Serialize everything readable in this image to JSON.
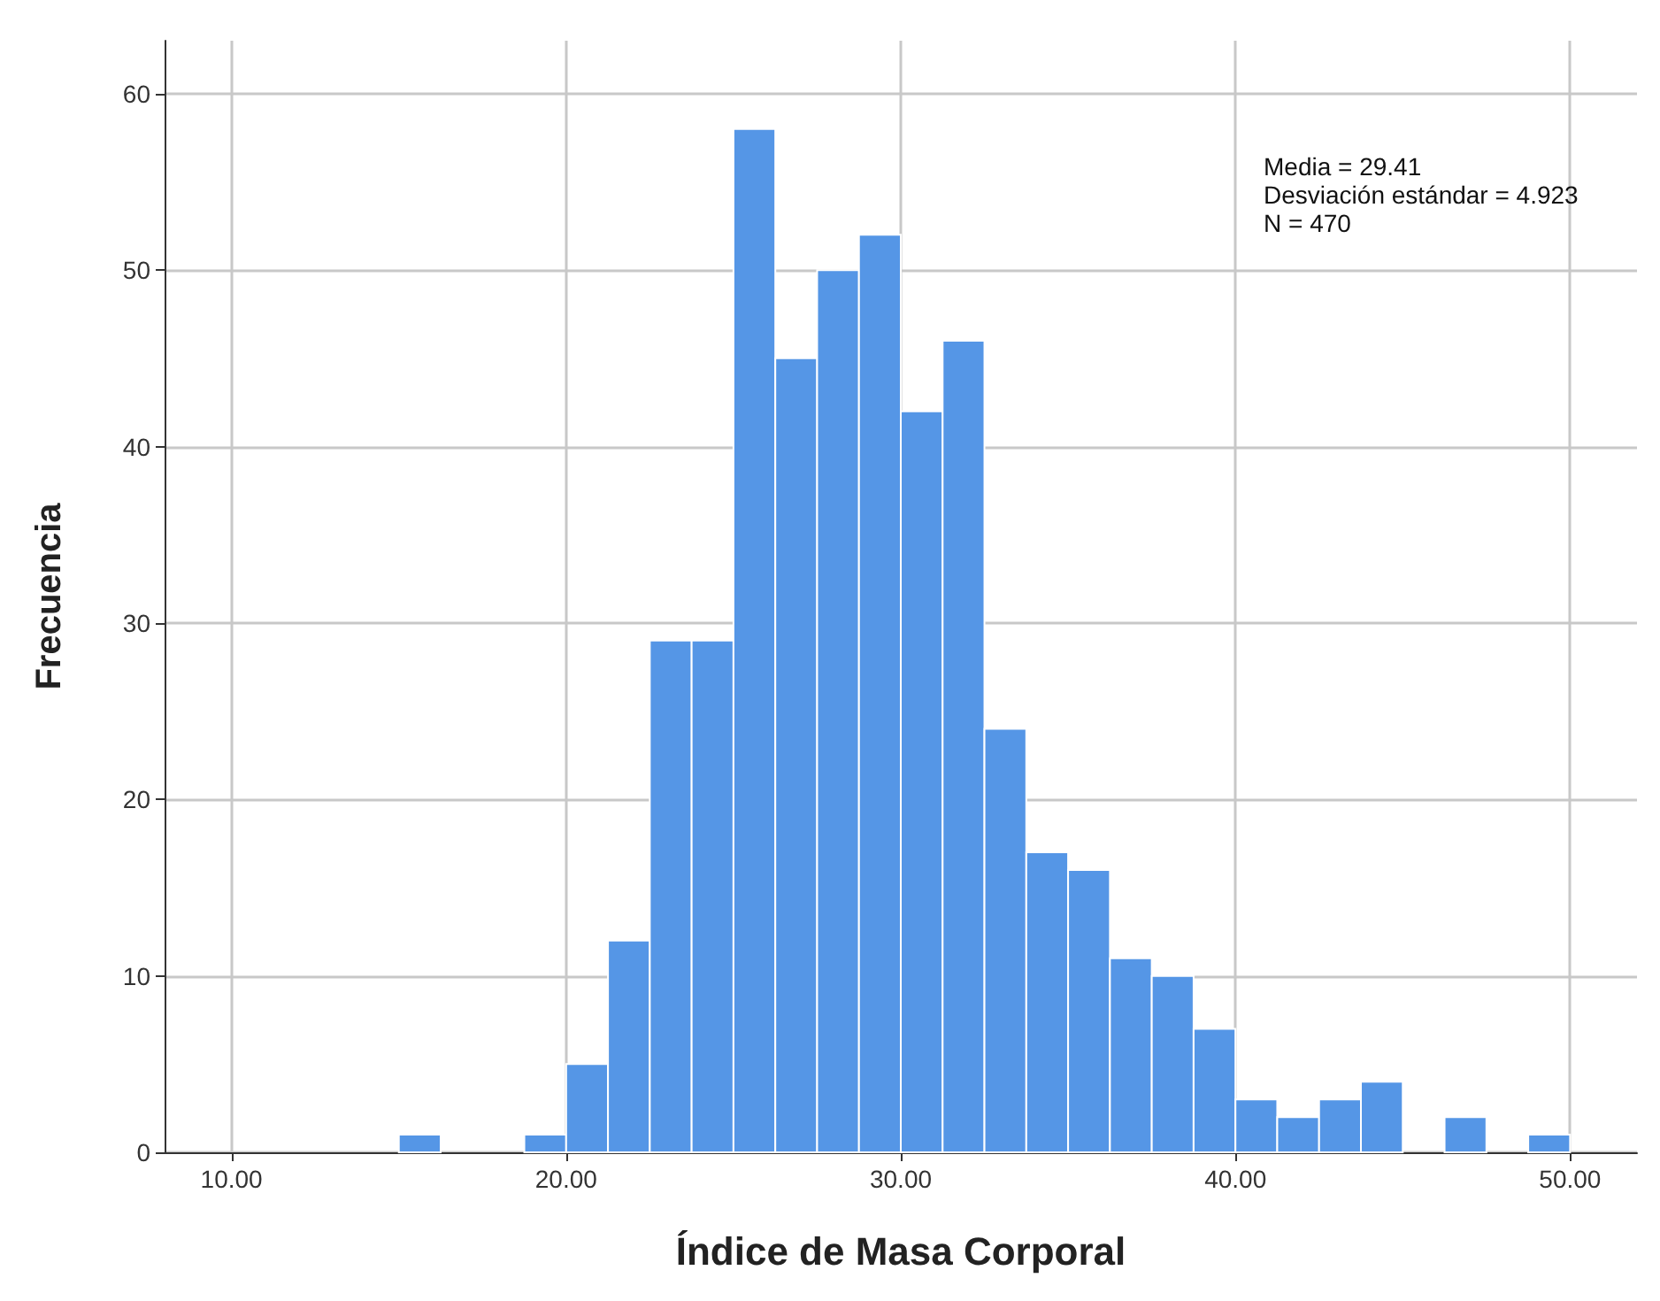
{
  "chart_data": {
    "type": "histogram",
    "xlabel": "Índice de Masa Corporal",
    "ylabel": "Frecuencia",
    "bins": [
      15,
      16.25,
      17.5,
      18.75,
      20,
      21.25,
      22.5,
      23.75,
      25,
      26.25,
      27.5,
      28.75,
      30,
      31.25,
      32.5,
      33.75,
      35,
      36.25,
      37.5,
      38.75,
      40,
      41.25,
      42.5,
      43.75,
      45,
      46.25,
      47.5,
      48.75,
      50
    ],
    "values": [
      1,
      0,
      0,
      1,
      5,
      12,
      29,
      29,
      58,
      45,
      50,
      52,
      42,
      46,
      24,
      17,
      16,
      11,
      10,
      7,
      3,
      2,
      3,
      4,
      0,
      2,
      0,
      1
    ],
    "color": "#5596e6",
    "xlim": [
      8,
      52
    ],
    "xticks": [
      {
        "value": 10,
        "label": "10.00"
      },
      {
        "value": 20,
        "label": "20.00"
      },
      {
        "value": 30,
        "label": "30.00"
      },
      {
        "value": 40,
        "label": "40.00"
      },
      {
        "value": 50,
        "label": "50.00"
      }
    ],
    "ylim": [
      0,
      63
    ],
    "yticks": [
      0,
      10,
      20,
      30,
      40,
      50,
      60
    ],
    "grid": true,
    "annotations": [
      "Media = 29.41",
      "Desviación estándar = 4.923",
      "N = 470"
    ]
  }
}
